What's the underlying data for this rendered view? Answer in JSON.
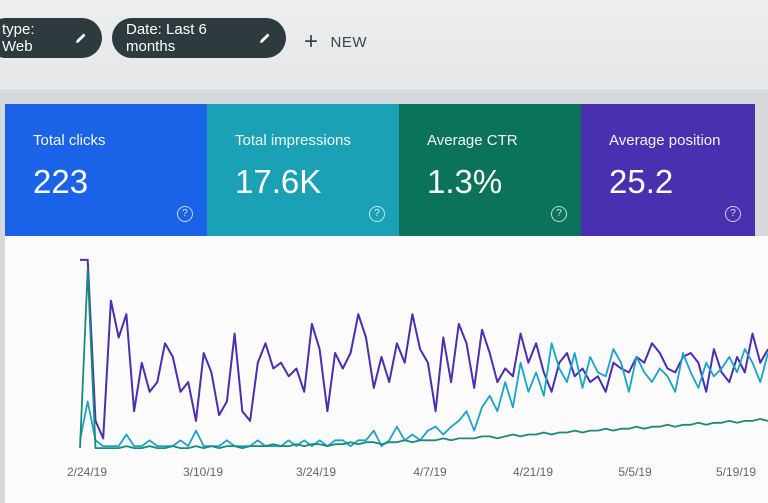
{
  "filters": {
    "type_chip": "type: Web",
    "date_chip": "Date: Last 6 months",
    "new_label": "NEW",
    "edit_icon": "pencil-icon",
    "add_icon": "plus-icon"
  },
  "cards": [
    {
      "label": "Total clicks",
      "value": "223",
      "color": "#1a63e8"
    },
    {
      "label": "Total impressions",
      "value": "17.6K",
      "color": "#1ba1b6"
    },
    {
      "label": "Average CTR",
      "value": "1.3%",
      "color": "#0b7359"
    },
    {
      "label": "Average position",
      "value": "25.2",
      "color": "#4a2fb0"
    }
  ],
  "help_icon": "question-circle-icon",
  "chart_data": {
    "type": "line",
    "x_tick_labels": [
      "2/24/19",
      "3/10/19",
      "3/24/19",
      "4/7/19",
      "4/21/19",
      "5/5/19",
      "5/19/19"
    ],
    "series": [
      {
        "color": "#4a2fb0",
        "values": [
          0.98,
          0.98,
          0.15,
          0.06,
          0.77,
          0.58,
          0.7,
          0.2,
          0.45,
          0.3,
          0.35,
          0.55,
          0.48,
          0.3,
          0.35,
          0.15,
          0.5,
          0.4,
          0.18,
          0.25,
          0.6,
          0.2,
          0.15,
          0.45,
          0.55,
          0.42,
          0.45,
          0.38,
          0.42,
          0.3,
          0.65,
          0.52,
          0.2,
          0.5,
          0.42,
          0.5,
          0.7,
          0.58,
          0.32,
          0.48,
          0.35,
          0.55,
          0.45,
          0.7,
          0.52,
          0.45,
          0.2,
          0.58,
          0.35,
          0.65,
          0.55,
          0.32,
          0.62,
          0.5,
          0.35,
          0.42,
          0.38,
          0.6,
          0.45,
          0.55,
          0.4,
          0.3,
          0.45,
          0.5,
          0.38,
          0.42,
          0.35,
          0.38,
          0.3,
          0.45,
          0.42,
          0.4,
          0.48,
          0.45,
          0.55,
          0.5,
          0.42,
          0.4,
          0.48,
          0.5,
          0.45,
          0.3,
          0.52,
          0.4,
          0.35,
          0.48,
          0.4,
          0.6,
          0.45,
          0.52
        ]
      },
      {
        "color": "#1aa3c8",
        "values": [
          0.05,
          0.25,
          0.05,
          0.02,
          0.02,
          0.02,
          0.08,
          0.02,
          0.02,
          0.05,
          0.02,
          0.02,
          0.02,
          0.05,
          0.02,
          0.1,
          0.02,
          0.02,
          0.02,
          0.05,
          0.02,
          0.02,
          0.02,
          0.05,
          0.02,
          0.02,
          0.02,
          0.05,
          0.02,
          0.05,
          0.02,
          0.05,
          0.02,
          0.05,
          0.05,
          0.02,
          0.05,
          0.05,
          0.1,
          0.02,
          0.05,
          0.12,
          0.05,
          0.08,
          0.05,
          0.1,
          0.12,
          0.08,
          0.12,
          0.15,
          0.2,
          0.1,
          0.22,
          0.28,
          0.2,
          0.35,
          0.22,
          0.45,
          0.3,
          0.4,
          0.28,
          0.55,
          0.42,
          0.35,
          0.5,
          0.32,
          0.48,
          0.4,
          0.38,
          0.52,
          0.45,
          0.3,
          0.48,
          0.4,
          0.35,
          0.42,
          0.38,
          0.3,
          0.5,
          0.4,
          0.32,
          0.45,
          0.38,
          0.42,
          0.48,
          0.4,
          0.52,
          0.45,
          0.35,
          0.5
        ]
      },
      {
        "color": "#1b8a78",
        "values": [
          0.01,
          0.93,
          0.01,
          0.01,
          0.01,
          0.01,
          0.02,
          0.01,
          0.01,
          0.02,
          0.01,
          0.01,
          0.02,
          0.01,
          0.01,
          0.02,
          0.01,
          0.02,
          0.01,
          0.02,
          0.02,
          0.01,
          0.02,
          0.02,
          0.02,
          0.03,
          0.02,
          0.02,
          0.03,
          0.02,
          0.03,
          0.03,
          0.02,
          0.03,
          0.03,
          0.04,
          0.03,
          0.04,
          0.04,
          0.03,
          0.04,
          0.04,
          0.05,
          0.04,
          0.05,
          0.05,
          0.05,
          0.06,
          0.05,
          0.06,
          0.06,
          0.06,
          0.07,
          0.07,
          0.06,
          0.07,
          0.08,
          0.07,
          0.08,
          0.08,
          0.09,
          0.08,
          0.09,
          0.09,
          0.1,
          0.09,
          0.1,
          0.1,
          0.11,
          0.1,
          0.11,
          0.11,
          0.12,
          0.11,
          0.12,
          0.12,
          0.13,
          0.12,
          0.13,
          0.13,
          0.14,
          0.13,
          0.14,
          0.14,
          0.15,
          0.14,
          0.15,
          0.15,
          0.16,
          0.15
        ]
      }
    ]
  }
}
